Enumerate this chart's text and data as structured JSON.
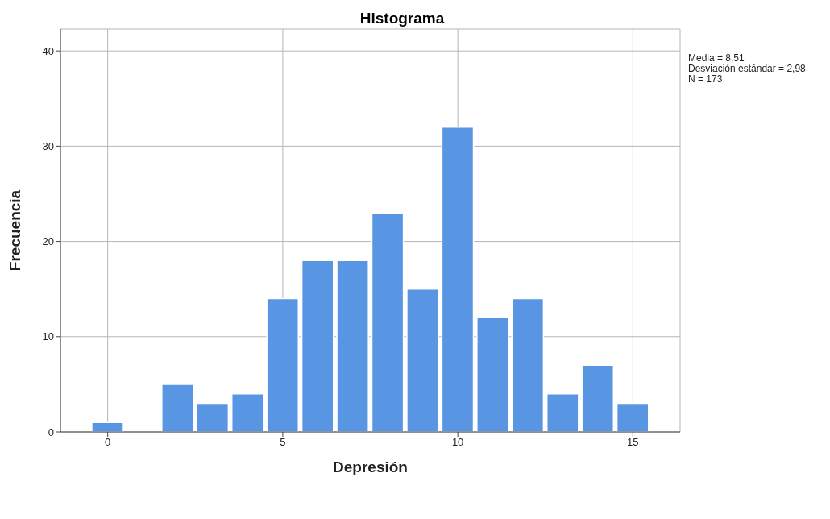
{
  "chart_data": {
    "type": "histogram",
    "title": "Histograma",
    "xlabel": "Depresión",
    "ylabel": "Frecuencia",
    "bins": [
      -0.5,
      0.5,
      1.5,
      2.5,
      3.5,
      4.5,
      5.5,
      6.5,
      7.5,
      8.5,
      9.5,
      10.5,
      11.5,
      12.5,
      13.5,
      14.5,
      15.5
    ],
    "values": [
      1,
      0,
      5,
      3,
      4,
      14,
      18,
      18,
      23,
      15,
      32,
      12,
      14,
      4,
      7,
      3
    ],
    "color": "#5895e3",
    "xlim": [
      -1.35,
      16.35
    ],
    "xticks": [
      0,
      5,
      10,
      15
    ],
    "ylim": [
      0,
      42.3
    ],
    "yticks": [
      0,
      10,
      20,
      30,
      40
    ],
    "grid": true,
    "annotations": [
      "Media = 8,51",
      "Desviación estándar = 2,98",
      "N = 173"
    ]
  }
}
